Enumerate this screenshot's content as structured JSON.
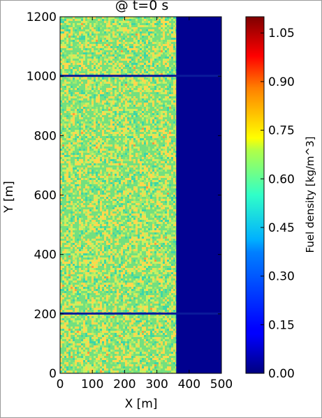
{
  "chart_data": {
    "type": "heatmap",
    "title": "@ t=0 s",
    "xlabel": "X [m]",
    "ylabel": "Y [m]",
    "xlim": [
      0,
      500
    ],
    "ylim": [
      0,
      1200
    ],
    "xticks": [
      "0",
      "100",
      "200",
      "300",
      "400",
      "500"
    ],
    "yticks": [
      "0",
      "200",
      "400",
      "600",
      "800",
      "1000",
      "1200"
    ],
    "colorbar": {
      "label": "Fuel density [kg/m^3]",
      "range": [
        0.0,
        1.1
      ],
      "ticks": [
        "0.00",
        "0.15",
        "0.30",
        "0.45",
        "0.60",
        "0.75",
        "0.90",
        "1.05"
      ],
      "colormap": "jet"
    },
    "regions": [
      {
        "x": [
          0,
          360
        ],
        "y": [
          0,
          1200
        ],
        "mean_density": 0.55,
        "pattern": "random-noise"
      },
      {
        "x": [
          360,
          500
        ],
        "y": [
          0,
          1200
        ],
        "density": 0.0
      }
    ],
    "fuel_breaks": [
      {
        "y": 1000,
        "x": [
          0,
          500
        ],
        "density": 0.05
      },
      {
        "y": 200,
        "x": [
          0,
          500
        ],
        "density": 0.05
      }
    ],
    "colors": {
      "fuel_base": "#73e07f",
      "empty": "#00008f",
      "break_line": "#0a1a9a",
      "noise": [
        "#ffd84d",
        "#c8f060",
        "#3cd6a8",
        "#9eea6e",
        "#ff9a3c"
      ]
    }
  }
}
